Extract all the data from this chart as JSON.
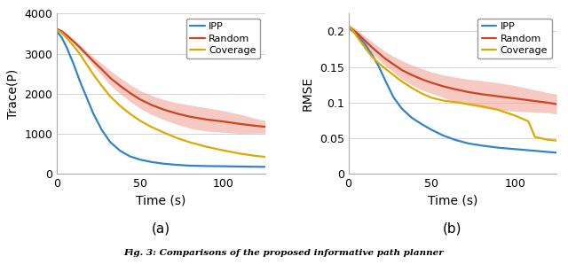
{
  "left": {
    "xlabel": "Time (s)",
    "ylabel": "Trace(P)",
    "xlim": [
      0,
      125
    ],
    "ylim": [
      0,
      4000
    ],
    "xticks": [
      0,
      50,
      100
    ],
    "yticks": [
      0,
      1000,
      2000,
      3000,
      4000
    ],
    "ipp_color": "#3283c8",
    "random_color": "#cc4422",
    "coverage_color": "#ddaa00",
    "random_fill_color": "#f0a090",
    "ipp": {
      "x": [
        0,
        3,
        6,
        10,
        14,
        18,
        22,
        27,
        32,
        38,
        44,
        50,
        57,
        64,
        72,
        80,
        90,
        100,
        110,
        120,
        125
      ],
      "y": [
        3560,
        3400,
        3150,
        2750,
        2300,
        1900,
        1500,
        1100,
        800,
        580,
        440,
        360,
        300,
        260,
        230,
        210,
        200,
        195,
        188,
        182,
        180
      ]
    },
    "random": {
      "x": [
        0,
        3,
        6,
        10,
        14,
        18,
        22,
        27,
        32,
        38,
        44,
        50,
        57,
        64,
        72,
        80,
        90,
        100,
        110,
        120,
        125
      ],
      "y": [
        3620,
        3560,
        3460,
        3310,
        3150,
        2980,
        2810,
        2610,
        2400,
        2200,
        2020,
        1860,
        1720,
        1610,
        1510,
        1430,
        1360,
        1310,
        1250,
        1200,
        1180
      ],
      "y_upper": [
        3640,
        3590,
        3500,
        3360,
        3220,
        3060,
        2920,
        2760,
        2580,
        2400,
        2230,
        2080,
        1960,
        1860,
        1780,
        1720,
        1650,
        1580,
        1490,
        1380,
        1340
      ],
      "y_lower": [
        3600,
        3530,
        3420,
        3260,
        3080,
        2900,
        2700,
        2460,
        2220,
        2000,
        1810,
        1640,
        1480,
        1360,
        1240,
        1140,
        1070,
        1040,
        1010,
        1020,
        1020
      ]
    },
    "coverage": {
      "x": [
        0,
        3,
        6,
        10,
        14,
        18,
        22,
        27,
        32,
        38,
        44,
        50,
        57,
        64,
        72,
        80,
        90,
        100,
        110,
        120,
        125
      ],
      "y": [
        3600,
        3520,
        3390,
        3200,
        2980,
        2730,
        2480,
        2200,
        1940,
        1700,
        1500,
        1330,
        1170,
        1040,
        900,
        790,
        680,
        590,
        510,
        450,
        430
      ]
    }
  },
  "right": {
    "xlabel": "Time (s)",
    "ylabel": "RMSE",
    "xlim": [
      0,
      125
    ],
    "ylim": [
      0,
      0.225
    ],
    "xticks": [
      0,
      50,
      100
    ],
    "yticks": [
      0,
      0.05,
      0.1,
      0.15,
      0.2
    ],
    "ytick_labels": [
      "0",
      "0.05",
      "0.1",
      "0.15",
      "0.2"
    ],
    "ipp_color": "#3283c8",
    "random_color": "#cc4422",
    "coverage_color": "#ddaa00",
    "random_fill_color": "#f0a090",
    "ipp": {
      "x": [
        0,
        3,
        6,
        10,
        14,
        18,
        22,
        27,
        32,
        38,
        44,
        50,
        57,
        64,
        72,
        80,
        90,
        100,
        110,
        120,
        125
      ],
      "y": [
        0.205,
        0.2,
        0.193,
        0.182,
        0.168,
        0.152,
        0.132,
        0.108,
        0.092,
        0.079,
        0.07,
        0.062,
        0.054,
        0.048,
        0.043,
        0.04,
        0.037,
        0.035,
        0.033,
        0.031,
        0.03
      ]
    },
    "random": {
      "x": [
        0,
        3,
        6,
        10,
        14,
        18,
        22,
        27,
        32,
        38,
        44,
        50,
        57,
        64,
        72,
        80,
        90,
        100,
        110,
        120,
        125
      ],
      "y": [
        0.207,
        0.202,
        0.196,
        0.187,
        0.178,
        0.17,
        0.162,
        0.154,
        0.146,
        0.139,
        0.133,
        0.128,
        0.123,
        0.119,
        0.115,
        0.112,
        0.109,
        0.106,
        0.103,
        0.1,
        0.098
      ],
      "y_upper": [
        0.21,
        0.206,
        0.201,
        0.193,
        0.186,
        0.179,
        0.172,
        0.165,
        0.159,
        0.153,
        0.148,
        0.143,
        0.139,
        0.136,
        0.133,
        0.131,
        0.128,
        0.124,
        0.119,
        0.114,
        0.112
      ],
      "y_lower": [
        0.204,
        0.198,
        0.191,
        0.181,
        0.17,
        0.161,
        0.152,
        0.143,
        0.133,
        0.125,
        0.118,
        0.113,
        0.107,
        0.102,
        0.097,
        0.093,
        0.09,
        0.088,
        0.087,
        0.086,
        0.084
      ]
    },
    "coverage": {
      "x": [
        0,
        3,
        6,
        10,
        14,
        18,
        22,
        27,
        32,
        38,
        44,
        50,
        57,
        64,
        72,
        80,
        90,
        100,
        108,
        112,
        118,
        120,
        125
      ],
      "y": [
        0.208,
        0.2,
        0.19,
        0.177,
        0.165,
        0.156,
        0.148,
        0.139,
        0.13,
        0.121,
        0.113,
        0.107,
        0.103,
        0.101,
        0.098,
        0.095,
        0.09,
        0.082,
        0.074,
        0.052,
        0.049,
        0.048,
        0.047
      ]
    }
  },
  "legend_labels": [
    "IPP",
    "Random",
    "Coverage"
  ],
  "fig_caption": "Fig. 3: Comparisons of the proposed informative path planner"
}
